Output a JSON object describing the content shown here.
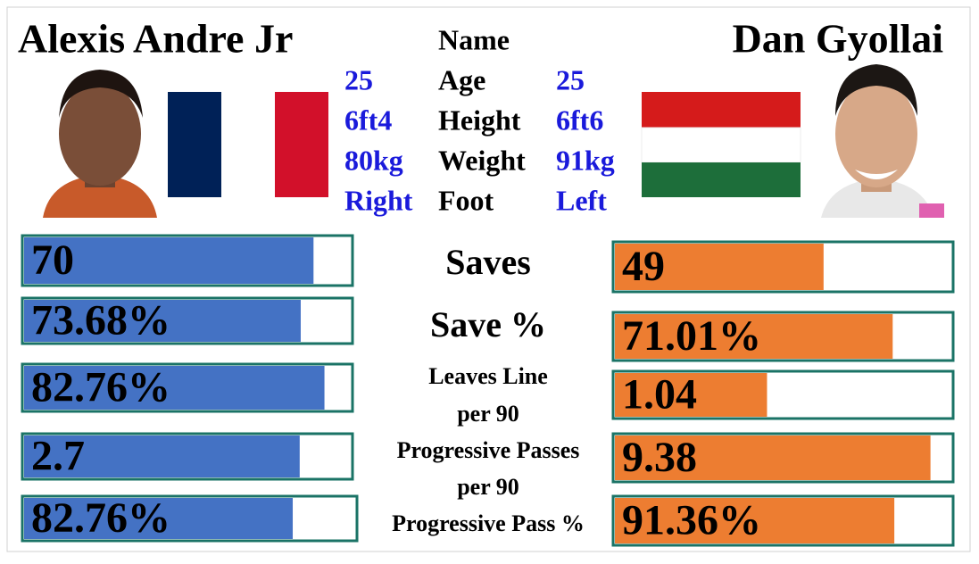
{
  "players": {
    "left": {
      "name": "Alexis Andre Jr",
      "flag": "France",
      "color": "#4472c4"
    },
    "right": {
      "name": "Dan Gyollai",
      "flag": "Hungary",
      "color": "#ed7d31"
    }
  },
  "bio": {
    "header": "Name",
    "value_color": "#1a1adb",
    "rows": [
      {
        "label": "Age",
        "left": "25",
        "right": "25"
      },
      {
        "label": "Height",
        "left": "6ft4",
        "right": "6ft6"
      },
      {
        "label": "Weight",
        "left": "80kg",
        "right": "91kg"
      },
      {
        "label": "Foot",
        "left": "Right",
        "right": "Left"
      }
    ]
  },
  "stats": [
    {
      "label": [
        "Saves"
      ],
      "left": {
        "value": 70,
        "label": "70",
        "xlim": [
          0,
          79
        ]
      },
      "right": {
        "value": 49,
        "label": "49",
        "xlim": [
          0,
          79
        ]
      }
    },
    {
      "label": [
        "Save %"
      ],
      "left": {
        "value": 73.68,
        "label": "73.68%",
        "xlim": [
          0,
          87
        ]
      },
      "right": {
        "value": 71.01,
        "label": "71.01%",
        "xlim": [
          0,
          86
        ]
      }
    },
    {
      "label": [
        "Leaves Line",
        "per 90"
      ],
      "left": {
        "value": 82.76,
        "label": "82.76%",
        "xlim": [
          0,
          90
        ]
      },
      "right": {
        "value": 1.04,
        "label": "1.04",
        "xlim": [
          0,
          2.3
        ]
      }
    },
    {
      "label": [
        "Progressive Passes",
        "per 90"
      ],
      "left": {
        "value": 2.7,
        "label": "2.7",
        "xlim": [
          0,
          3.2
        ]
      },
      "right": {
        "value": 9.38,
        "label": "9.38",
        "xlim": [
          0,
          10
        ]
      }
    },
    {
      "label": [
        "Progressive Pass %"
      ],
      "left": {
        "value": 82.76,
        "label": "82.76%",
        "xlim": [
          0,
          102
        ]
      },
      "right": {
        "value": 91.36,
        "label": "91.36%",
        "xlim": [
          0,
          110
        ]
      }
    }
  ]
}
